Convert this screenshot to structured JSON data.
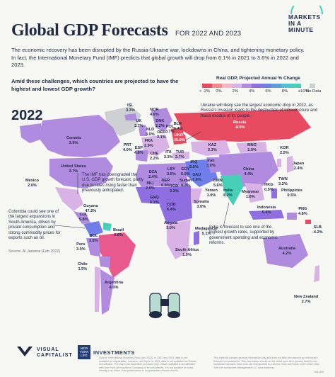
{
  "header": {
    "title": "Global GDP Forecasts",
    "subtitle": "FOR 2022 AND 2023",
    "brand_line1": "MARKETS",
    "brand_line2": "IN A",
    "brand_line3": "MINUTE"
  },
  "intro": "The economic recovery has been disrupted by the Russia-Ukraine war, lockdowns in China, and tightening monetary policy. In fact, the International Monetary Fund (IMF) predicts that global growth will drop from 6.1% in 2021 to 3.6% in 2022 and 2023.",
  "question": "Amid these challenges, which countries are projected to have the highest and lowest GDP growth?",
  "legend": {
    "title": "Real GDP, Projected Annual % Change",
    "ticks": [
      "< -2%",
      "0%",
      "2%",
      "4%",
      "6%",
      "8%",
      "≥10%"
    ],
    "no_data": "No Data",
    "colors": [
      "#e84a5f",
      "#f28a8a",
      "#f4b6c2",
      "#d9b3e6",
      "#b08be0",
      "#8e6ee0",
      "#6f7ee8",
      "#5a9fe0",
      "#4cc3cf",
      "#46d0b8"
    ]
  },
  "year": "2022",
  "countries": [
    {
      "name": "ISL",
      "value": "3.3%"
    },
    {
      "name": "NOR",
      "value": "4.0%"
    },
    {
      "name": "UK",
      "value": "3.7%"
    },
    {
      "name": "DNK",
      "value": "2.2%"
    },
    {
      "name": "NLD",
      "value": "3.0%"
    },
    {
      "name": "DEU",
      "value": "2.1%"
    },
    {
      "name": "POL",
      "value": "3.7%"
    },
    {
      "name": "BLR",
      "value": "-6.4%"
    },
    {
      "name": "UKR",
      "value": "-35.0%"
    },
    {
      "name": "FRA",
      "value": "2.9%"
    },
    {
      "name": "CHE",
      "value": "2.2%"
    },
    {
      "name": "ITA",
      "value": "2.3%"
    },
    {
      "name": "PRT",
      "value": "4.0%"
    },
    {
      "name": "ESP",
      "value": "4.8%"
    },
    {
      "name": "TUR",
      "value": "2.7%"
    },
    {
      "name": "Russia",
      "value": "-8.5%"
    },
    {
      "name": "KAZ",
      "value": "2.3%"
    },
    {
      "name": "MNG",
      "value": "2.0%"
    },
    {
      "name": "Canada",
      "value": "3.9%"
    },
    {
      "name": "United States",
      "value": "3.7%"
    },
    {
      "name": "China",
      "value": "4.4%"
    },
    {
      "name": "Japan",
      "value": "2.4%"
    },
    {
      "name": "KOR",
      "value": "2.5%"
    },
    {
      "name": "HKG",
      "value": "0.5%"
    },
    {
      "name": "TWN",
      "value": "3.2%"
    },
    {
      "name": "Iran",
      "value": "3.0%"
    },
    {
      "name": "IRQ",
      "value": "9.5%"
    },
    {
      "name": "SAU",
      "value": "7.6%"
    },
    {
      "name": "DMN",
      "value": "5.6%"
    },
    {
      "name": "Yemen",
      "value": "1.0%"
    },
    {
      "name": "Myanmar",
      "value": "1.6%"
    },
    {
      "name": "India",
      "value": "8.2%"
    },
    {
      "name": "Philippines",
      "value": "6.5%"
    },
    {
      "name": "Indonesia",
      "value": "5.4%"
    },
    {
      "name": "PNG",
      "value": "4.8%"
    },
    {
      "name": "Australia",
      "value": "4.2%"
    },
    {
      "name": "New Zealand",
      "value": "2.7%"
    },
    {
      "name": "SLB",
      "value": "-4.2%"
    },
    {
      "name": "Mexico",
      "value": "2.0%"
    },
    {
      "name": "Guyana",
      "value": "47.2%"
    },
    {
      "name": "Brazil",
      "value": "0.8%"
    },
    {
      "name": "Peru",
      "value": "3.0%"
    },
    {
      "name": "BOL",
      "value": "3.8%"
    },
    {
      "name": "Chile",
      "value": "1.5%"
    },
    {
      "name": "Argentina",
      "value": "4.0%"
    },
    {
      "name": "COL",
      "value": "5.8%"
    },
    {
      "name": "DZA",
      "value": "2.4%"
    },
    {
      "name": "LBY",
      "value": "3.5%"
    },
    {
      "name": "EGY",
      "value": "5.9%"
    },
    {
      "name": "MLI",
      "value": "2.0%"
    },
    {
      "name": "NER",
      "value": "6.9%"
    },
    {
      "name": "TCD",
      "value": "3.3%"
    },
    {
      "name": "Sudan",
      "value": "0.3%"
    },
    {
      "name": "GNQ",
      "value": "6.1%"
    },
    {
      "name": "COD",
      "value": "6.4%"
    },
    {
      "name": "Somalia",
      "value": "3.0%"
    },
    {
      "name": "Angola",
      "value": "3.0%"
    },
    {
      "name": "Madagascar",
      "value": "5.1%"
    },
    {
      "name": "South Africa",
      "value": "1.9%"
    }
  ],
  "callouts": {
    "ukraine": "Ukraine will likely see the largest economic drop in 2022, as Russia's invasion leads to the destruction of infrastructure and mass exodus of its people.",
    "us": "The IMF has downgraded the U.S. GDP growth forecast, partly due to rates rising faster than previously anticipated.",
    "colombia": "Colombia could see one of the largest expansions in South America, driven by private consumption and strong commodity prices for exports such as oil.",
    "colombia_source": "Source: Al Jazeera (Feb 2022)",
    "india": "India is forecast to see one of the highest growth rates, supported by government spending and economic reforms."
  },
  "logos": {
    "vc_line1": "VISUAL",
    "vc_line2": "CAPITALIST",
    "nyl_line1": "NEW",
    "nyl_line2": "YORK",
    "nyl_line3": "LIFE",
    "investments": "INVESTMENTS"
  },
  "footer": {
    "left": "Source: International Monetary Fund (Apr 2022). In 2022 and 2023, data is not available for Afghanistan, Lebanon, and Syria. In 2023, data is not available for Russia and Ukraine. The map is for illustrative purposes only. Visual Capitalist is not affiliated with New York Life Insurance Company or its subsidiaries. It is not possible to invest directly in an index. Past performance is no guarantee of future results.",
    "right": "This material contains general information only and does not take into account an individual's financial circumstances. This information should not be relied upon as a primary basis for an investment decision. New York Life Investments is a service mark and name under which New York Life Investment Management LLC does business.",
    "id": "1841435"
  }
}
